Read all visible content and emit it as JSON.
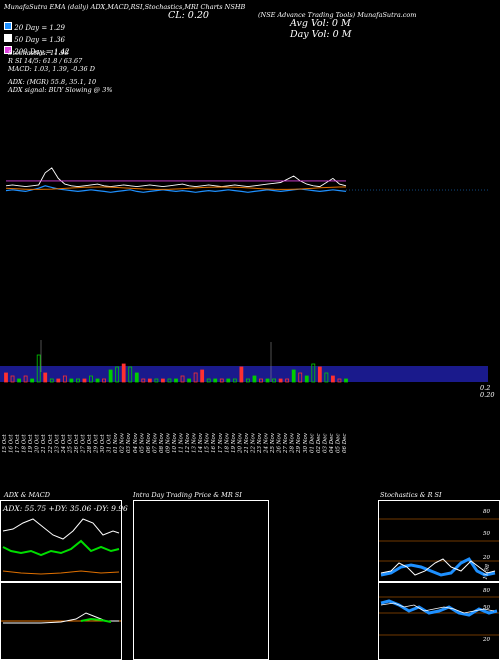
{
  "header": {
    "line1": "MunafaSutra EMA (daily) ADX,MACD,RSI,Stochastics,MRI Charts NSHB",
    "ticker_note": "(NSE Advance Trading Tools) MunafaSutra.com",
    "cl_label": "CL: 0.20",
    "avg_vol": "Avg Vol: 0  M",
    "day_vol": "Day Vol: 0  M"
  },
  "legend": [
    {
      "label": "20  Day = 1.29",
      "color": "#1e90ff"
    },
    {
      "label": "50  Day = 1.36",
      "color": "#ffffff"
    },
    {
      "label": "200  Day = 1.42",
      "color": "#e040e0"
    }
  ],
  "indicators": {
    "stochastics": "Stochastics: 11.98",
    "rsi": "R            SI 14/5: 61.8 / 63.67",
    "macd": "MACD: 1.03,  1.39,  -0.36  D",
    "adx": "ADX:                            (MGR) 55.8,  35.1,  10",
    "adx_signal": "ADX  signal:                                                   BUY Slowing @ 3%"
  },
  "price_axis": {
    "top": "0.2",
    "bottom": "0.20"
  },
  "chart_data": {
    "type": "line",
    "x": [
      "15 Oct",
      "16 Oct",
      "17 Oct",
      "18 Oct",
      "19 Oct",
      "20 Oct",
      "21 Oct",
      "22 Oct",
      "23 Oct",
      "24 Oct",
      "25 Oct",
      "26 Oct",
      "27 Oct",
      "28 Oct",
      "29 Oct",
      "30 Oct",
      "31 Oct",
      "01 Nov",
      "02 Nov",
      "03 Nov",
      "04 Nov",
      "05 Nov",
      "06 Nov",
      "07 Nov",
      "08 Nov",
      "09 Nov",
      "10 Nov",
      "11 Nov",
      "12 Nov",
      "13 Nov",
      "14 Nov",
      "15 Nov",
      "16 Nov",
      "17 Nov",
      "18 Nov",
      "19 Nov",
      "20 Nov",
      "21 Nov",
      "22 Nov",
      "23 Nov",
      "24 Nov",
      "25 Nov",
      "26 Nov",
      "27 Nov",
      "28 Nov",
      "29 Nov",
      "30 Nov",
      "01 Dec",
      "02 Dec",
      "03 Dec",
      "04 Dec",
      "05 Dec",
      "06 Dec"
    ],
    "series": [
      {
        "name": "20 Day",
        "color": "#1e90ff",
        "values": [
          1.3,
          1.31,
          1.3,
          1.29,
          1.31,
          1.33,
          1.36,
          1.34,
          1.32,
          1.31,
          1.3,
          1.29,
          1.3,
          1.31,
          1.3,
          1.29,
          1.28,
          1.29,
          1.3,
          1.31,
          1.29,
          1.28,
          1.29,
          1.3,
          1.31,
          1.3,
          1.29,
          1.3,
          1.29,
          1.28,
          1.29,
          1.3,
          1.29,
          1.3,
          1.31,
          1.3,
          1.29,
          1.28,
          1.29,
          1.3,
          1.31,
          1.3,
          1.29,
          1.3,
          1.31,
          1.32,
          1.31,
          1.3,
          1.29,
          1.3,
          1.31,
          1.3,
          1.29
        ]
      },
      {
        "name": "50 Day",
        "color": "#ffffff",
        "values": [
          1.36,
          1.37,
          1.36,
          1.35,
          1.36,
          1.37,
          1.52,
          1.58,
          1.45,
          1.38,
          1.36,
          1.35,
          1.36,
          1.37,
          1.38,
          1.36,
          1.35,
          1.36,
          1.37,
          1.36,
          1.35,
          1.36,
          1.37,
          1.36,
          1.35,
          1.36,
          1.37,
          1.38,
          1.36,
          1.35,
          1.36,
          1.37,
          1.36,
          1.35,
          1.36,
          1.37,
          1.36,
          1.35,
          1.36,
          1.37,
          1.38,
          1.39,
          1.4,
          1.44,
          1.48,
          1.42,
          1.38,
          1.36,
          1.35,
          1.4,
          1.45,
          1.38,
          1.36
        ]
      },
      {
        "name": "200 Day",
        "color": "#e040e0",
        "values": [
          1.42,
          1.42,
          1.42,
          1.42,
          1.42,
          1.42,
          1.42,
          1.42,
          1.42,
          1.42,
          1.42,
          1.42,
          1.42,
          1.42,
          1.42,
          1.42,
          1.42,
          1.42,
          1.42,
          1.42,
          1.42,
          1.42,
          1.42,
          1.42,
          1.42,
          1.42,
          1.42,
          1.42,
          1.42,
          1.42,
          1.42,
          1.42,
          1.42,
          1.42,
          1.42,
          1.42,
          1.42,
          1.42,
          1.42,
          1.42,
          1.42,
          1.42,
          1.42,
          1.42,
          1.42,
          1.42,
          1.42,
          1.42,
          1.42,
          1.42,
          1.42,
          1.42,
          1.42
        ]
      }
    ],
    "volume": [
      3,
      2,
      1,
      2,
      1,
      9,
      3,
      1,
      1,
      2,
      1,
      1,
      1,
      2,
      1,
      1,
      4,
      5,
      6,
      5,
      3,
      1,
      1,
      1,
      1,
      1,
      1,
      2,
      1,
      3,
      4,
      1,
      1,
      1,
      1,
      1,
      5,
      1,
      2,
      1,
      1,
      1,
      1,
      1,
      4,
      3,
      2,
      6,
      5,
      3,
      2,
      1,
      1
    ],
    "volume_colors": [
      "red",
      "green"
    ]
  },
  "panels": {
    "adx": {
      "title": "ADX  & MACD",
      "values": "ADX: 55.75  +DY: 35.06  -DY: 9.96"
    },
    "intraday": {
      "title": "Intra  Day Trading Price  & MR                  SI"
    },
    "stoch": {
      "title": "Stochastics & R                  SI"
    },
    "stoch_ticks": [
      "80",
      "50",
      "20",
      "80",
      "50",
      "20"
    ],
    "stoch_value": "11.98"
  }
}
